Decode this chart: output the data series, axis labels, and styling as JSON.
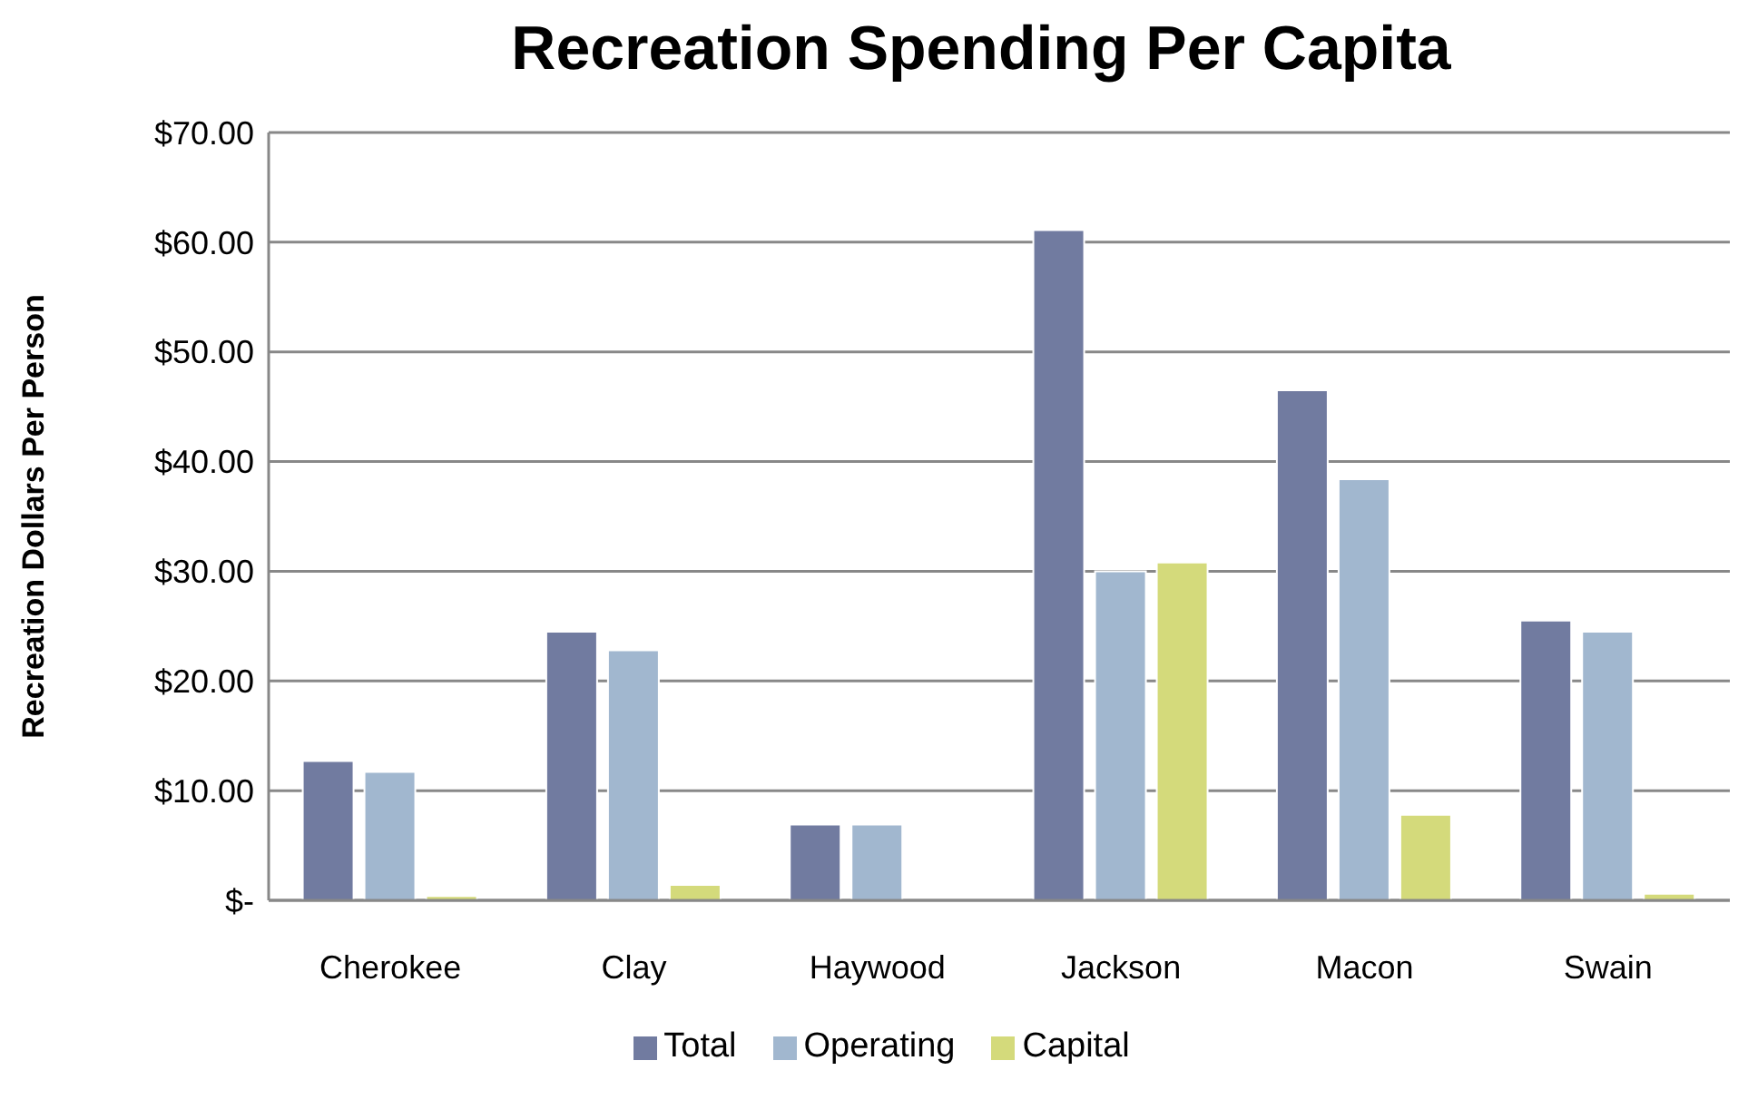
{
  "chart_data": {
    "type": "bar",
    "title": "Recreation Spending Per Capita",
    "ylabel": "Recreation Dollars Per Person",
    "categories": [
      "Cherokee",
      "Clay",
      "Haywood",
      "Jackson",
      "Macon",
      "Swain"
    ],
    "series": [
      {
        "name": "Total",
        "color": "#717ba0",
        "values": [
          12.7,
          24.5,
          6.9,
          61.1,
          46.5,
          25.5
        ]
      },
      {
        "name": "Operating",
        "color": "#a1b7cf",
        "values": [
          11.7,
          22.8,
          6.9,
          30.0,
          38.4,
          24.5
        ]
      },
      {
        "name": "Capital",
        "color": "#d4da7b",
        "values": [
          0.4,
          1.4,
          0,
          30.8,
          7.8,
          0.6
        ]
      }
    ],
    "ylim": [
      0,
      70
    ],
    "yticks": [
      {
        "value": 0,
        "label": "$-"
      },
      {
        "value": 10,
        "label": "$10.00"
      },
      {
        "value": 20,
        "label": "$20.00"
      },
      {
        "value": 30,
        "label": "$30.00"
      },
      {
        "value": 40,
        "label": "$40.00"
      },
      {
        "value": 50,
        "label": "$50.00"
      },
      {
        "value": 60,
        "label": "$60.00"
      },
      {
        "value": 70,
        "label": "$70.00"
      }
    ],
    "grid": "y",
    "legend": "bottom"
  }
}
